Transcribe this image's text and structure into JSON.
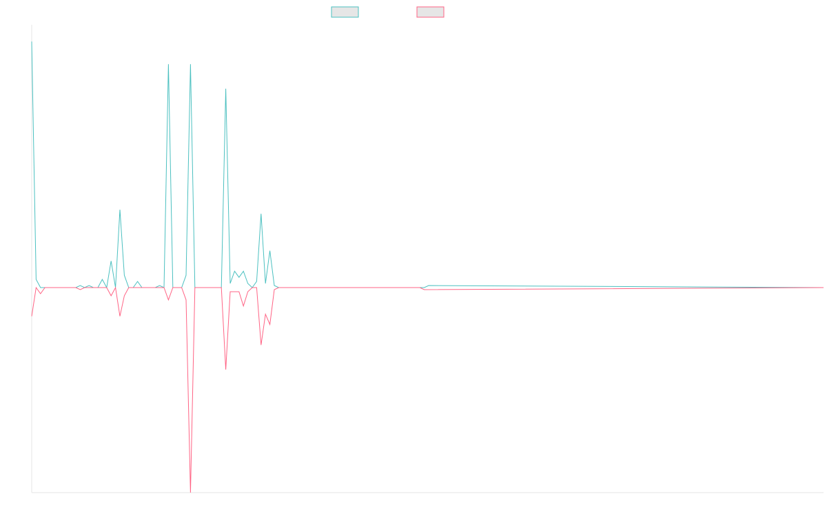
{
  "chart_data": {
    "type": "line",
    "title": "",
    "xlabel": "",
    "ylabel": "",
    "ylim": [
      -1.0,
      1.0
    ],
    "grid": false,
    "legend_position": "top-center",
    "series": [
      {
        "color": "#4bc0c0",
        "fill_color": "#e6e6e6",
        "values": [
          1.2,
          0.04,
          0,
          0,
          0,
          0,
          0,
          0,
          0,
          0,
          0,
          0.01,
          0,
          0.01,
          0,
          0,
          0.04,
          0,
          0.13,
          0,
          0.38,
          0.06,
          0,
          0,
          0.03,
          0,
          0,
          0,
          0,
          0.01,
          0,
          1.09,
          0,
          0,
          0,
          0.06,
          1.09,
          0,
          0,
          0,
          0,
          0,
          0,
          0,
          0.97,
          0.02,
          0.08,
          0.05,
          0.08,
          0.02,
          0,
          0.03,
          0.36,
          0.02,
          0.18,
          0.01,
          0,
          0,
          0,
          0,
          0,
          0,
          0,
          0,
          0,
          0,
          0,
          0,
          0,
          0,
          0,
          0,
          0,
          0,
          0,
          0,
          0,
          0,
          0,
          0,
          0,
          0,
          0,
          0,
          0,
          0,
          0,
          0,
          0,
          0,
          0.01
        ]
      },
      {
        "color": "#ff6384",
        "fill_color": "#e6e6e6",
        "values": [
          -0.14,
          0,
          -0.03,
          0,
          0,
          0,
          0,
          0,
          0,
          0,
          0,
          -0.01,
          0,
          0,
          0,
          0,
          0,
          0,
          -0.04,
          0,
          -0.14,
          -0.04,
          0,
          0,
          0,
          0,
          0,
          0,
          0,
          0,
          0,
          -0.06,
          0,
          0,
          0,
          -0.06,
          -1.0,
          0,
          0,
          0,
          0,
          0,
          0,
          0,
          -0.4,
          -0.02,
          -0.02,
          -0.02,
          -0.09,
          -0.02,
          0,
          0,
          -0.28,
          -0.13,
          -0.18,
          -0.01,
          0,
          0,
          0,
          0,
          0,
          0,
          0,
          0,
          0,
          0,
          0,
          0,
          0,
          0,
          0,
          0,
          0,
          0,
          0,
          0,
          0,
          0,
          0,
          0,
          0,
          0,
          0,
          0,
          0,
          0,
          0,
          0,
          0,
          -0.01
        ]
      }
    ]
  }
}
